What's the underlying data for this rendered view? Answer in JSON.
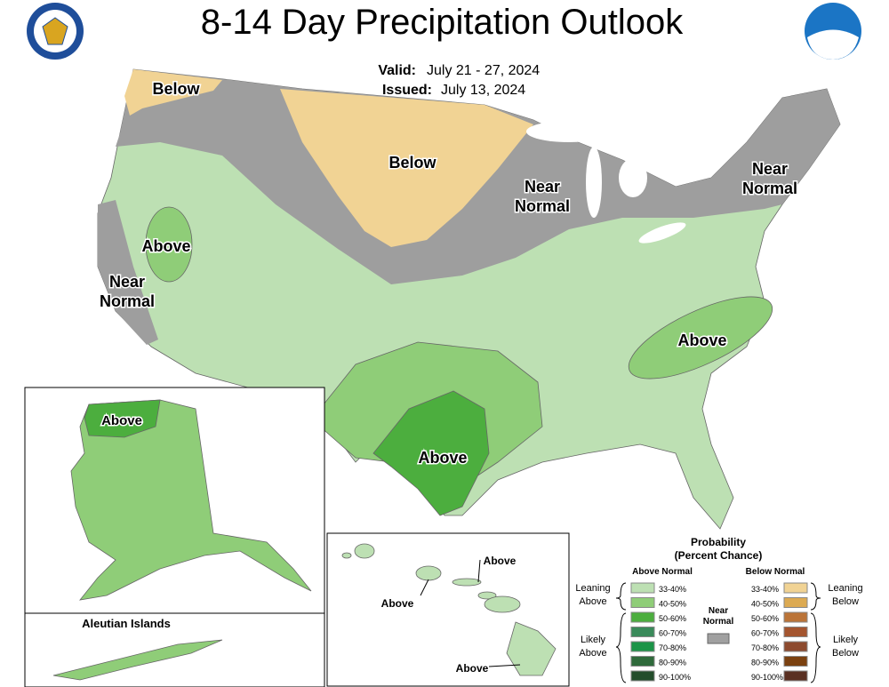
{
  "header": {
    "title": "8-14 Day Precipitation Outlook",
    "valid_label": "Valid:",
    "valid": "July 21 - 27, 2024",
    "issued_label": "Issued:",
    "issued": "July 13, 2024"
  },
  "map_labels": {
    "northwest": [
      "Below"
    ],
    "north_plains": [
      "Below"
    ],
    "great_lakes": [
      "Near",
      "Normal"
    ],
    "northeast": [
      "Near",
      "Normal"
    ],
    "nevada": [
      "Above"
    ],
    "california": [
      "Near",
      "Normal"
    ],
    "southeast": [
      "Above"
    ],
    "texas": [
      "Above"
    ],
    "alaska": [
      "Above"
    ],
    "hawaii_north": [
      "Above"
    ],
    "hawaii_west": [
      "Above"
    ],
    "hawaii_south": [
      "Above"
    ]
  },
  "insets": {
    "aleutian": "Aleutian Islands"
  },
  "legend": {
    "title": [
      "Probability",
      "(Percent Chance)"
    ],
    "above_heading": "Above Normal",
    "below_heading": "Below Normal",
    "leaning_above": [
      "Leaning",
      "Above"
    ],
    "likely_above": [
      "Likely",
      "Above"
    ],
    "leaning_below": [
      "Leaning",
      "Below"
    ],
    "likely_below": [
      "Likely",
      "Below"
    ],
    "near_normal": [
      "Near",
      "Normal"
    ],
    "near_color": "#a0a0a0",
    "above": [
      {
        "label": "33-40%",
        "color": "#bde0b3"
      },
      {
        "label": "40-50%",
        "color": "#8fcd78"
      },
      {
        "label": "50-60%",
        "color": "#4cae3e"
      },
      {
        "label": "60-70%",
        "color": "#3a8a5a"
      },
      {
        "label": "70-80%",
        "color": "#1b9447"
      },
      {
        "label": "80-90%",
        "color": "#2f6a3b"
      },
      {
        "label": "90-100%",
        "color": "#234d2b"
      }
    ],
    "below": [
      {
        "label": "33-40%",
        "color": "#f1d394"
      },
      {
        "label": "40-50%",
        "color": "#dcaa52"
      },
      {
        "label": "50-60%",
        "color": "#bb7438"
      },
      {
        "label": "60-70%",
        "color": "#a4552f"
      },
      {
        "label": "70-80%",
        "color": "#8d4a2e"
      },
      {
        "label": "80-90%",
        "color": "#7b4110"
      },
      {
        "label": "90-100%",
        "color": "#5a3022"
      }
    ]
  }
}
